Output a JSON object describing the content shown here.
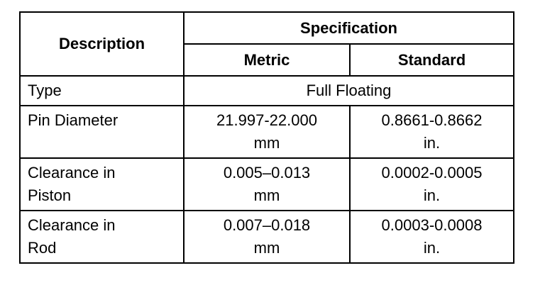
{
  "table": {
    "header": {
      "description": "Description",
      "specification": "Specification",
      "metric": "Metric",
      "standard": "Standard"
    },
    "type_row": [
      "Type",
      "Full Floating"
    ],
    "rows": [
      [
        "Pin Diameter",
        "21.997-22.000\nmm",
        "0.8661-0.8662\nin."
      ],
      [
        "Clearance in\nPiston",
        "0.005–0.013\nmm",
        "0.0002-0.0005\nin."
      ],
      [
        "Clearance in\nRod",
        "0.007–0.018\nmm",
        "0.0003-0.0008\nin."
      ]
    ]
  }
}
